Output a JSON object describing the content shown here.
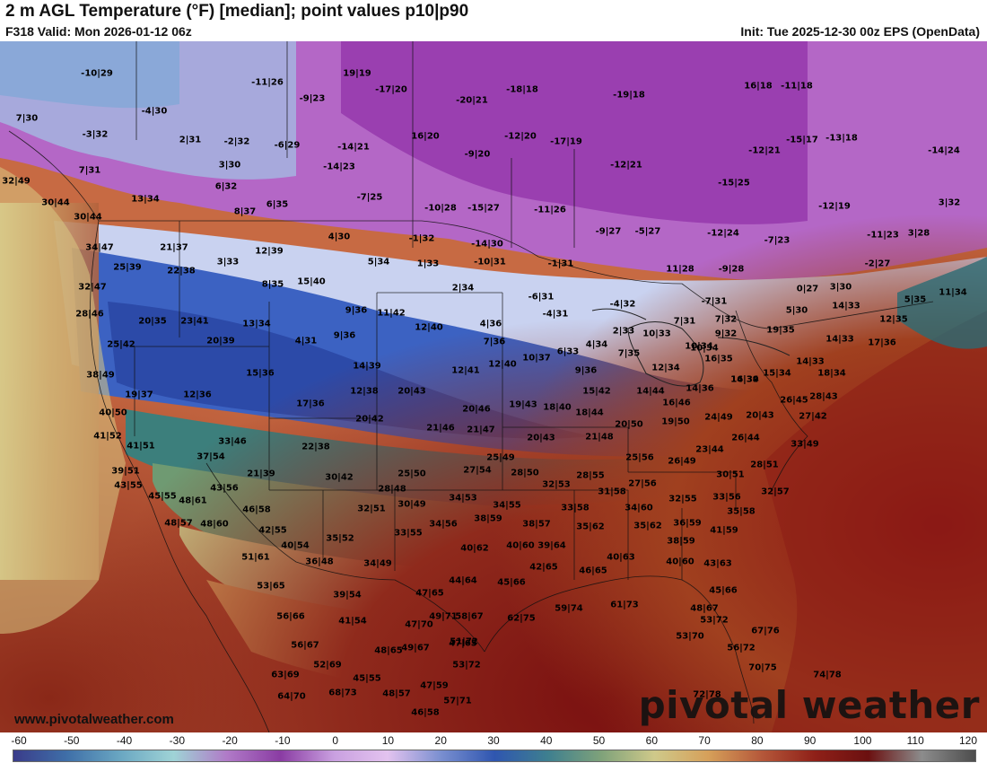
{
  "header": {
    "title": "2 m AGL Temperature (°F) [median]; point values p10|p90",
    "valid": "F318 Valid: Mon 2026-01-12 06z",
    "init": "Init: Tue 2025-12-30 00z EPS (OpenData)"
  },
  "footer": {
    "credit": "www.pivotalweather.com",
    "brand": "pivotal weather"
  },
  "scale": {
    "ticks": [
      "-60",
      "-50",
      "-40",
      "-30",
      "-20",
      "-10",
      "0",
      "10",
      "20",
      "30",
      "40",
      "50",
      "60",
      "70",
      "80",
      "90",
      "100",
      "110",
      "120"
    ],
    "colors": [
      "#3a3c8a",
      "#3f6fa8",
      "#6aa7c2",
      "#9fd3d6",
      "#b07ac7",
      "#8a3ca3",
      "#c9a0e0",
      "#e3c3ef",
      "#7a8fd0",
      "#2f56b0",
      "#3e7f8f",
      "#7fa27a",
      "#cfc98a",
      "#d6a05a",
      "#b5583a",
      "#8f2018",
      "#6b1010",
      "#8c8c8c",
      "#4d4d4d"
    ],
    "palette_note_colors": {
      "cold_purple": "#b061c6",
      "mid_blue": "#3d63c0",
      "warm_red": "#8f1a14"
    }
  },
  "points": [
    {
      "t": "-10|29"
    },
    {
      "t": "-11|26"
    },
    {
      "t": "19|19"
    },
    {
      "t": "-17|20"
    },
    {
      "t": "-18|18"
    },
    {
      "t": "-19|18"
    },
    {
      "t": "16|18"
    },
    {
      "t": "-11|18"
    },
    {
      "t": "7|30"
    },
    {
      "t": "-4|30"
    },
    {
      "t": "-9|23"
    },
    {
      "t": "-20|21"
    },
    {
      "t": "-3|32"
    },
    {
      "t": "2|31"
    },
    {
      "t": "-2|32"
    },
    {
      "t": "-6|29"
    },
    {
      "t": "-14|21"
    },
    {
      "t": "16|20"
    },
    {
      "t": "-12|20"
    },
    {
      "t": "-17|19"
    },
    {
      "t": "-15|17"
    },
    {
      "t": "-13|18"
    },
    {
      "t": "-14|24"
    },
    {
      "t": "-9|20"
    },
    {
      "t": "-12|21"
    },
    {
      "t": "7|31"
    },
    {
      "t": "3|30"
    },
    {
      "t": "-14|23"
    },
    {
      "t": "-12|21"
    },
    {
      "t": "32|49"
    },
    {
      "t": "6|32"
    },
    {
      "t": "-15|25"
    },
    {
      "t": "13|34"
    },
    {
      "t": "-7|25"
    },
    {
      "t": "30|44"
    },
    {
      "t": "8|37"
    },
    {
      "t": "6|35"
    },
    {
      "t": "-10|28"
    },
    {
      "t": "-15|27"
    },
    {
      "t": "-11|26"
    },
    {
      "t": "-12|19"
    },
    {
      "t": "3|32"
    },
    {
      "t": "30|44"
    },
    {
      "t": "-9|27"
    },
    {
      "t": "-5|27"
    },
    {
      "t": "-12|24"
    },
    {
      "t": "-7|23"
    },
    {
      "t": "-11|23"
    },
    {
      "t": "3|28"
    },
    {
      "t": "4|30"
    },
    {
      "t": "-1|32"
    },
    {
      "t": "-14|30"
    },
    {
      "t": "34|47"
    },
    {
      "t": "21|37"
    },
    {
      "t": "12|39"
    },
    {
      "t": "25|39"
    },
    {
      "t": "22|38"
    },
    {
      "t": "3|33"
    },
    {
      "t": "5|34"
    },
    {
      "t": "1|33"
    },
    {
      "t": "-10|31"
    },
    {
      "t": "-1|31"
    },
    {
      "t": "11|28"
    },
    {
      "t": "-9|28"
    },
    {
      "t": "-2|27"
    },
    {
      "t": "8|35"
    },
    {
      "t": "15|40"
    },
    {
      "t": "32|47"
    },
    {
      "t": "2|34"
    },
    {
      "t": "-6|31"
    },
    {
      "t": "0|27"
    },
    {
      "t": "3|30"
    },
    {
      "t": "11|34"
    },
    {
      "t": "-4|32"
    },
    {
      "t": "-7|31"
    },
    {
      "t": "5|35"
    },
    {
      "t": "28|46"
    },
    {
      "t": "9|36"
    },
    {
      "t": "11|42"
    },
    {
      "t": "-4|31"
    },
    {
      "t": "5|30"
    },
    {
      "t": "14|33"
    },
    {
      "t": "20|35"
    },
    {
      "t": "23|41"
    },
    {
      "t": "13|34"
    },
    {
      "t": "12|40"
    },
    {
      "t": "4|36"
    },
    {
      "t": "7|31"
    },
    {
      "t": "7|32"
    },
    {
      "t": "12|35"
    },
    {
      "t": "2|33"
    },
    {
      "t": "10|33"
    },
    {
      "t": "9|32"
    },
    {
      "t": "19|35"
    },
    {
      "t": "25|42"
    },
    {
      "t": "20|39"
    },
    {
      "t": "4|31"
    },
    {
      "t": "9|36"
    },
    {
      "t": "7|36"
    },
    {
      "t": "4|34"
    },
    {
      "t": "10|34"
    },
    {
      "t": "14|33"
    },
    {
      "t": "17|36"
    },
    {
      "t": "6|33"
    },
    {
      "t": "7|35"
    },
    {
      "t": "10|34"
    },
    {
      "t": "15|34"
    },
    {
      "t": "38|49"
    },
    {
      "t": "15|36"
    },
    {
      "t": "14|39"
    },
    {
      "t": "12|41"
    },
    {
      "t": "12|40"
    },
    {
      "t": "10|37"
    },
    {
      "t": "9|36"
    },
    {
      "t": "12|34"
    },
    {
      "t": "16|35"
    },
    {
      "t": "16|34"
    },
    {
      "t": "14|33"
    },
    {
      "t": "18|34"
    },
    {
      "t": "19|37"
    },
    {
      "t": "12|36"
    },
    {
      "t": "12|38"
    },
    {
      "t": "20|43"
    },
    {
      "t": "15|42"
    },
    {
      "t": "14|44"
    },
    {
      "t": "14|36"
    },
    {
      "t": "14|39"
    },
    {
      "t": "26|45"
    },
    {
      "t": "28|43"
    },
    {
      "t": "17|36"
    },
    {
      "t": "19|43"
    },
    {
      "t": "18|40"
    },
    {
      "t": "16|46"
    },
    {
      "t": "40|50"
    },
    {
      "t": "20|46"
    },
    {
      "t": "18|44"
    },
    {
      "t": "20|42"
    },
    {
      "t": "21|46"
    },
    {
      "t": "21|47"
    },
    {
      "t": "20|50"
    },
    {
      "t": "19|50"
    },
    {
      "t": "24|49"
    },
    {
      "t": "20|43"
    },
    {
      "t": "27|42"
    },
    {
      "t": "41|52"
    },
    {
      "t": "33|46"
    },
    {
      "t": "20|43"
    },
    {
      "t": "21|48"
    },
    {
      "t": "26|44"
    },
    {
      "t": "41|51"
    },
    {
      "t": "22|38"
    },
    {
      "t": "33|49"
    },
    {
      "t": "37|54"
    },
    {
      "t": "25|49"
    },
    {
      "t": "23|44"
    },
    {
      "t": "25|56"
    },
    {
      "t": "26|49"
    },
    {
      "t": "28|51"
    },
    {
      "t": "39|51"
    },
    {
      "t": "21|39"
    },
    {
      "t": "27|54"
    },
    {
      "t": "28|50"
    },
    {
      "t": "30|51"
    },
    {
      "t": "30|42"
    },
    {
      "t": "25|50"
    },
    {
      "t": "28|55"
    },
    {
      "t": "43|55"
    },
    {
      "t": "43|56"
    },
    {
      "t": "32|53"
    },
    {
      "t": "27|56"
    },
    {
      "t": "28|48"
    },
    {
      "t": "31|58"
    },
    {
      "t": "32|57"
    },
    {
      "t": "45|55"
    },
    {
      "t": "48|61"
    },
    {
      "t": "34|53"
    },
    {
      "t": "32|55"
    },
    {
      "t": "33|56"
    },
    {
      "t": "46|58"
    },
    {
      "t": "30|49"
    },
    {
      "t": "34|55"
    },
    {
      "t": "33|58"
    },
    {
      "t": "34|60"
    },
    {
      "t": "32|51"
    },
    {
      "t": "35|58"
    },
    {
      "t": "48|57"
    },
    {
      "t": "48|60"
    },
    {
      "t": "38|59"
    },
    {
      "t": "38|57"
    },
    {
      "t": "36|59"
    },
    {
      "t": "42|55"
    },
    {
      "t": "34|56"
    },
    {
      "t": "35|62"
    },
    {
      "t": "35|62"
    },
    {
      "t": "41|59"
    },
    {
      "t": "33|55"
    },
    {
      "t": "35|52"
    },
    {
      "t": "38|59"
    },
    {
      "t": "40|54"
    },
    {
      "t": "40|62"
    },
    {
      "t": "40|60"
    },
    {
      "t": "39|64"
    },
    {
      "t": "51|61"
    },
    {
      "t": "36|48"
    },
    {
      "t": "34|49"
    },
    {
      "t": "40|63"
    },
    {
      "t": "40|60"
    },
    {
      "t": "43|63"
    },
    {
      "t": "42|65"
    },
    {
      "t": "45|66"
    },
    {
      "t": "46|65"
    },
    {
      "t": "44|64"
    },
    {
      "t": "53|65"
    },
    {
      "t": "39|54"
    },
    {
      "t": "47|65"
    },
    {
      "t": "45|66"
    },
    {
      "t": "61|73"
    },
    {
      "t": "48|67"
    },
    {
      "t": "59|74"
    },
    {
      "t": "56|66"
    },
    {
      "t": "41|54"
    },
    {
      "t": "47|70"
    },
    {
      "t": "62|75"
    },
    {
      "t": "49|71"
    },
    {
      "t": "53|72"
    },
    {
      "t": "47|65"
    },
    {
      "t": "58|67"
    },
    {
      "t": "53|70"
    },
    {
      "t": "67|76"
    },
    {
      "t": "56|72"
    },
    {
      "t": "51|72"
    },
    {
      "t": "49|67"
    },
    {
      "t": "48|65"
    },
    {
      "t": "56|67"
    },
    {
      "t": "52|69"
    },
    {
      "t": "53|72"
    },
    {
      "t": "70|75"
    },
    {
      "t": "63|69"
    },
    {
      "t": "45|55"
    },
    {
      "t": "74|78"
    },
    {
      "t": "47|59"
    },
    {
      "t": "64|70"
    },
    {
      "t": "68|73"
    },
    {
      "t": "48|57"
    },
    {
      "t": "72|78"
    },
    {
      "t": "57|71"
    },
    {
      "t": "46|58"
    }
  ]
}
